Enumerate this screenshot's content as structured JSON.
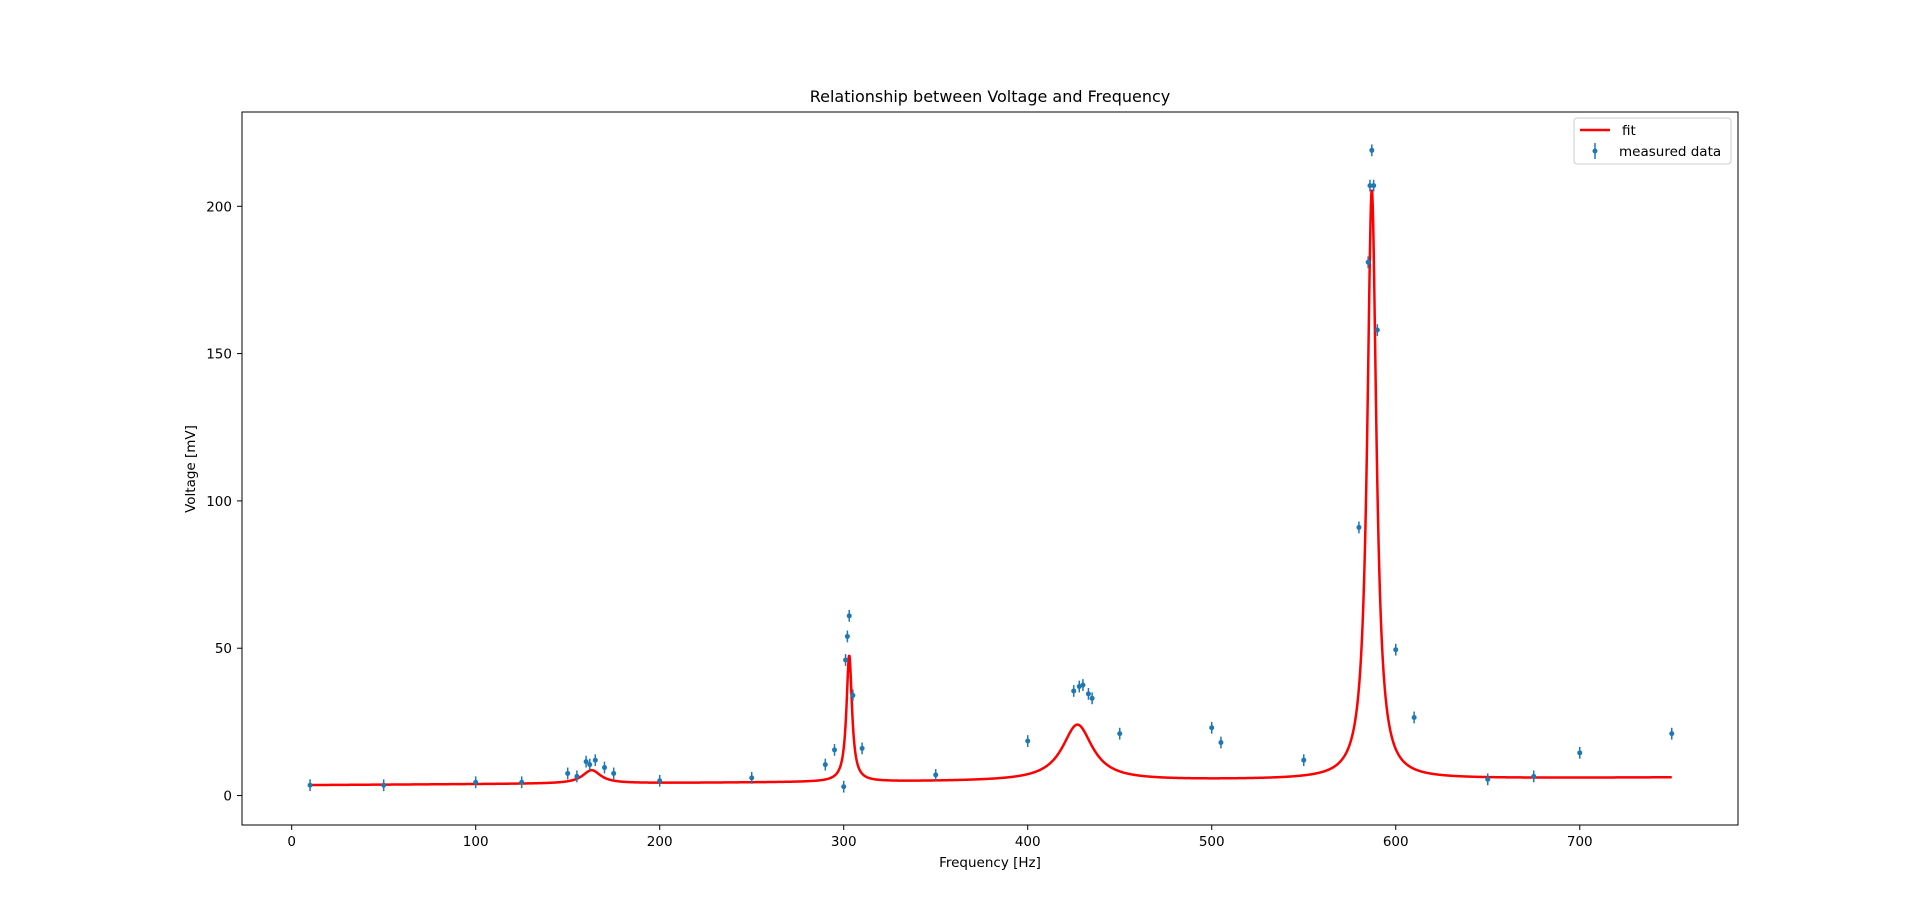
{
  "chart_data": {
    "type": "scatter",
    "title": "Relationship between Voltage and Frequency",
    "xlabel": "Frequency [Hz]",
    "ylabel": "Voltage [mV]",
    "xlim": [
      -27,
      786
    ],
    "ylim": [
      -10,
      232
    ],
    "xticks": [
      0,
      100,
      200,
      300,
      400,
      500,
      600,
      700
    ],
    "yticks": [
      0,
      50,
      100,
      150,
      200
    ],
    "grid": false,
    "legend_position": "top-right",
    "colors": {
      "fit": "#ff0000",
      "data": "#1f77b4"
    },
    "series": [
      {
        "name": "fit",
        "type": "line",
        "model": {
          "baseline": 3.5,
          "slope": 0.0035,
          "peaks": [
            {
              "center": 163,
              "amplitude": 4.5,
              "width": 6
            },
            {
              "center": 303,
              "amplitude": 43,
              "width": 1.8
            },
            {
              "center": 427,
              "amplitude": 19,
              "width": 10
            },
            {
              "center": 587,
              "amplitude": 200,
              "width": 3
            }
          ],
          "x_start": 10,
          "x_end": 750
        }
      },
      {
        "name": "measured data",
        "type": "errorbar",
        "yerr": 2,
        "points": [
          {
            "x": 10,
            "y": 3.5
          },
          {
            "x": 50,
            "y": 3.5
          },
          {
            "x": 100,
            "y": 4.5
          },
          {
            "x": 125,
            "y": 4.5
          },
          {
            "x": 150,
            "y": 7.5
          },
          {
            "x": 155,
            "y": 6.5
          },
          {
            "x": 160,
            "y": 11.5
          },
          {
            "x": 162,
            "y": 10.5
          },
          {
            "x": 165,
            "y": 12
          },
          {
            "x": 170,
            "y": 9.5
          },
          {
            "x": 175,
            "y": 7.5
          },
          {
            "x": 200,
            "y": 5
          },
          {
            "x": 250,
            "y": 6
          },
          {
            "x": 290,
            "y": 10.5
          },
          {
            "x": 295,
            "y": 15.5
          },
          {
            "x": 300,
            "y": 3
          },
          {
            "x": 301,
            "y": 46
          },
          {
            "x": 302,
            "y": 54
          },
          {
            "x": 303,
            "y": 61
          },
          {
            "x": 305,
            "y": 34
          },
          {
            "x": 310,
            "y": 16
          },
          {
            "x": 350,
            "y": 7
          },
          {
            "x": 400,
            "y": 18.5
          },
          {
            "x": 425,
            "y": 35.5
          },
          {
            "x": 428,
            "y": 37
          },
          {
            "x": 430,
            "y": 37.5
          },
          {
            "x": 433,
            "y": 34.5
          },
          {
            "x": 435,
            "y": 33
          },
          {
            "x": 450,
            "y": 21
          },
          {
            "x": 500,
            "y": 23
          },
          {
            "x": 505,
            "y": 18
          },
          {
            "x": 550,
            "y": 12
          },
          {
            "x": 580,
            "y": 91
          },
          {
            "x": 585,
            "y": 181
          },
          {
            "x": 586,
            "y": 207
          },
          {
            "x": 587,
            "y": 219
          },
          {
            "x": 588,
            "y": 207
          },
          {
            "x": 590,
            "y": 158
          },
          {
            "x": 600,
            "y": 49.5
          },
          {
            "x": 610,
            "y": 26.5
          },
          {
            "x": 650,
            "y": 5.5
          },
          {
            "x": 675,
            "y": 6.5
          },
          {
            "x": 700,
            "y": 14.5
          },
          {
            "x": 750,
            "y": 21
          }
        ]
      }
    ]
  }
}
